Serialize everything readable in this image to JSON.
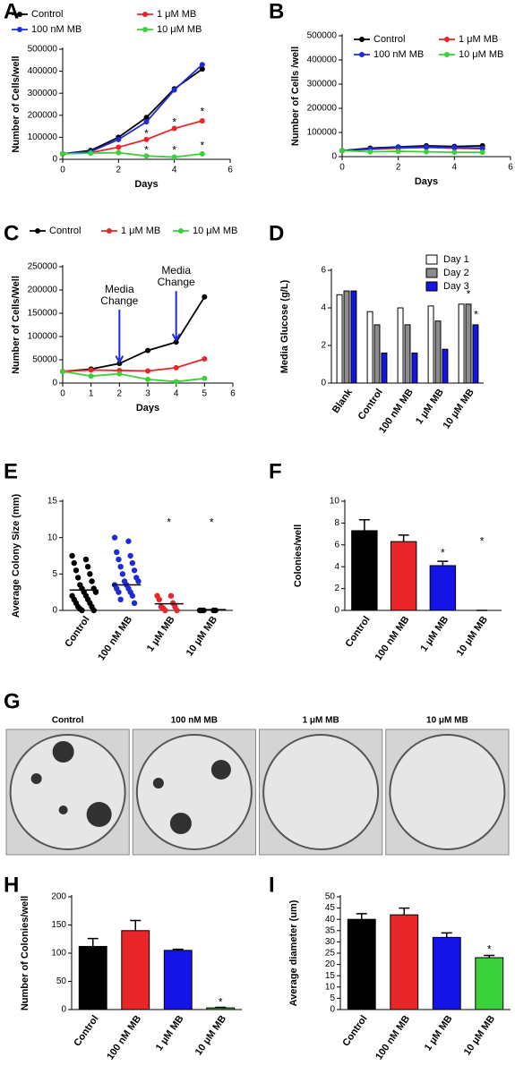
{
  "chart_data": [
    {
      "panel": "A",
      "type": "line",
      "xlabel": "Days",
      "ylabel": "Number of Cells/well",
      "x": [
        0,
        1,
        2,
        3,
        4,
        5
      ],
      "xlim": [
        0,
        6
      ],
      "xticks": [
        0,
        2,
        4,
        6
      ],
      "ylim": [
        0,
        500000
      ],
      "yticks": [
        0,
        100000,
        200000,
        300000,
        400000,
        500000
      ],
      "legend": "top",
      "series": [
        {
          "name": "Control",
          "color": "#000000",
          "values": [
            25000,
            40000,
            100000,
            190000,
            320000,
            410000
          ]
        },
        {
          "name": "1 μM MB",
          "color": "#e8262a",
          "values": [
            25000,
            30000,
            55000,
            90000,
            140000,
            175000
          ]
        },
        {
          "name": "100 nM MB",
          "color": "#1f2bd6",
          "values": [
            25000,
            35000,
            90000,
            170000,
            315000,
            430000
          ]
        },
        {
          "name": "10 μM MB",
          "color": "#3ad13a",
          "values": [
            25000,
            28000,
            30000,
            15000,
            10000,
            25000
          ]
        }
      ],
      "annotations": [
        {
          "text": "*",
          "x": 3,
          "y": 115000
        },
        {
          "text": "*",
          "x": 4,
          "y": 165000
        },
        {
          "text": "*",
          "x": 5,
          "y": 215000
        },
        {
          "text": "*",
          "x": 3,
          "y": 40000
        },
        {
          "text": "*",
          "x": 4,
          "y": 40000
        },
        {
          "text": "*",
          "x": 5,
          "y": 60000
        }
      ]
    },
    {
      "panel": "B",
      "type": "line",
      "xlabel": "Days",
      "ylabel": "Number of Cells /well",
      "x": [
        0,
        1,
        2,
        3,
        4,
        5
      ],
      "xlim": [
        0,
        6
      ],
      "xticks": [
        0,
        2,
        4,
        6
      ],
      "ylim": [
        0,
        500000
      ],
      "yticks": [
        0,
        100000,
        200000,
        300000,
        400000,
        500000
      ],
      "legend": "inside",
      "series": [
        {
          "name": "Control",
          "color": "#000000",
          "values": [
            25000,
            35000,
            40000,
            45000,
            42000,
            45000
          ]
        },
        {
          "name": "1 μM MB",
          "color": "#e8262a",
          "values": [
            25000,
            30000,
            35000,
            38000,
            35000,
            33000
          ]
        },
        {
          "name": "100 nM MB",
          "color": "#1f2bd6",
          "values": [
            25000,
            32000,
            38000,
            40000,
            38000,
            35000
          ]
        },
        {
          "name": "10 μM MB",
          "color": "#3ad13a",
          "values": [
            25000,
            20000,
            22000,
            20000,
            18000,
            18000
          ]
        }
      ]
    },
    {
      "panel": "C",
      "type": "line",
      "xlabel": "Days",
      "ylabel": "Number of Cells/Well",
      "x": [
        0,
        1,
        2,
        3,
        4,
        5
      ],
      "xlim": [
        0,
        6
      ],
      "xticks": [
        0,
        1,
        2,
        3,
        4,
        5,
        6
      ],
      "ylim": [
        0,
        250000
      ],
      "yticks": [
        0,
        50000,
        100000,
        150000,
        200000,
        250000
      ],
      "legend": "row",
      "series": [
        {
          "name": "Control",
          "color": "#000000",
          "values": [
            25000,
            30000,
            42000,
            70000,
            88000,
            185000
          ]
        },
        {
          "name": "1 μM MB",
          "color": "#e8262a",
          "values": [
            25000,
            28000,
            27000,
            26000,
            33000,
            52000
          ]
        },
        {
          "name": "10 μM MB",
          "color": "#3ad13a",
          "values": [
            25000,
            15000,
            20000,
            8000,
            3000,
            10000
          ]
        }
      ],
      "annotations": [
        {
          "text": "Media Change",
          "x": 2,
          "y": 200000,
          "arrow_to": 45000
        },
        {
          "text": "Media Change",
          "x": 4,
          "y": 240000,
          "arrow_to": 92000
        }
      ]
    },
    {
      "panel": "D",
      "type": "grouped_bar",
      "ylabel": "Media Glucose (g/L)",
      "categories": [
        "Blank",
        "Control",
        "100 nM MB",
        "1 μM MB",
        "10 μM MB"
      ],
      "ylim": [
        0,
        6
      ],
      "yticks": [
        0,
        2,
        4,
        6
      ],
      "legend": "upper right",
      "series": [
        {
          "name": "Day 1",
          "color": "#ffffff",
          "values": [
            4.7,
            3.8,
            4.0,
            4.1,
            4.2
          ]
        },
        {
          "name": "Day 2",
          "color": "#8c8c8c",
          "values": [
            4.9,
            3.1,
            3.1,
            3.3,
            4.2
          ]
        },
        {
          "name": "Day 3",
          "color": "#1414e6",
          "values": [
            4.9,
            1.6,
            1.6,
            1.8,
            3.1
          ]
        }
      ],
      "annotations": [
        {
          "text": "*",
          "x": 4,
          "y": 4.7
        },
        {
          "text": "*",
          "x": 4.25,
          "y": 3.6
        }
      ]
    },
    {
      "panel": "E",
      "type": "strip",
      "ylabel": "Average Colony Size (mm)",
      "categories": [
        "Control",
        "100 nM MB",
        "1 μM MB",
        "10 μM MB"
      ],
      "colors": [
        "#000000",
        "#1f2bd6",
        "#e8262a",
        "#000000"
      ],
      "ylim": [
        0,
        15
      ],
      "yticks": [
        0,
        5,
        10,
        15
      ],
      "points": [
        [
          7.5,
          7,
          6.5,
          6,
          5.5,
          5,
          4.5,
          4,
          3.5,
          3,
          3,
          2.5,
          2.5,
          2,
          2,
          1.5,
          1.5,
          1,
          1,
          0.5,
          0.5,
          0.2,
          0,
          0
        ],
        [
          10,
          9.5,
          8,
          7.5,
          7,
          6.5,
          6,
          5.5,
          5,
          4.5,
          4,
          4,
          3.5,
          3.5,
          3,
          3,
          2.5,
          2.5,
          2,
          1.5,
          1
        ],
        [
          2,
          2,
          1.5,
          1,
          0.5,
          0.5,
          0.3,
          0,
          0
        ],
        [
          0,
          0,
          0,
          0,
          0
        ]
      ],
      "means": [
        2.8,
        3.5,
        0.9,
        0.1
      ],
      "annotations": [
        {
          "text": "*",
          "x": 2,
          "y": 12
        },
        {
          "text": "*",
          "x": 3,
          "y": 12
        }
      ]
    },
    {
      "panel": "F",
      "type": "bar",
      "ylabel": "Colonies/well",
      "categories": [
        "Control",
        "100 nM MB",
        "1 μM MB",
        "10 μM MB"
      ],
      "colors": [
        "#000000",
        "#e8262a",
        "#1414e6",
        "#3ad13a"
      ],
      "values": [
        7.3,
        6.3,
        4.1,
        0
      ],
      "errors": [
        1.0,
        0.6,
        0.4,
        0
      ],
      "ylim": [
        0,
        10
      ],
      "yticks": [
        0,
        2,
        4,
        6,
        8,
        10
      ],
      "annotations": [
        {
          "text": "*",
          "x": 2,
          "y": 5.2
        },
        {
          "text": "*",
          "x": 3,
          "y": 6.3
        }
      ]
    },
    {
      "panel": "G",
      "type": "image",
      "labels": [
        "Control",
        "100 nM MB",
        "1 μM MB",
        "10 μM MB"
      ]
    },
    {
      "panel": "H",
      "type": "bar",
      "ylabel": "Number of Colonies/well",
      "categories": [
        "Control",
        "100 nM MB",
        "1 μM MB",
        "10 μM MB"
      ],
      "colors": [
        "#000000",
        "#e8262a",
        "#1414e6",
        "#3ad13a"
      ],
      "values": [
        112,
        140,
        105,
        3
      ],
      "errors": [
        14,
        18,
        2,
        1
      ],
      "ylim": [
        0,
        200
      ],
      "yticks": [
        0,
        50,
        100,
        150,
        200
      ],
      "annotations": [
        {
          "text": "*",
          "x": 3,
          "y": 12
        }
      ]
    },
    {
      "panel": "I",
      "type": "bar",
      "ylabel": "Average diameter (um)",
      "categories": [
        "Control",
        "100 nM MB",
        "1 μM MB",
        "10 μM MB"
      ],
      "colors": [
        "#000000",
        "#e8262a",
        "#1414e6",
        "#3ad13a"
      ],
      "values": [
        40,
        42,
        32,
        23
      ],
      "errors": [
        2.5,
        3,
        2,
        1
      ],
      "ylim": [
        0,
        50
      ],
      "yticks": [
        0,
        5,
        10,
        15,
        20,
        25,
        30,
        35,
        40,
        45,
        50
      ],
      "annotations": [
        {
          "text": "*",
          "x": 3,
          "y": 26.5
        }
      ]
    }
  ]
}
